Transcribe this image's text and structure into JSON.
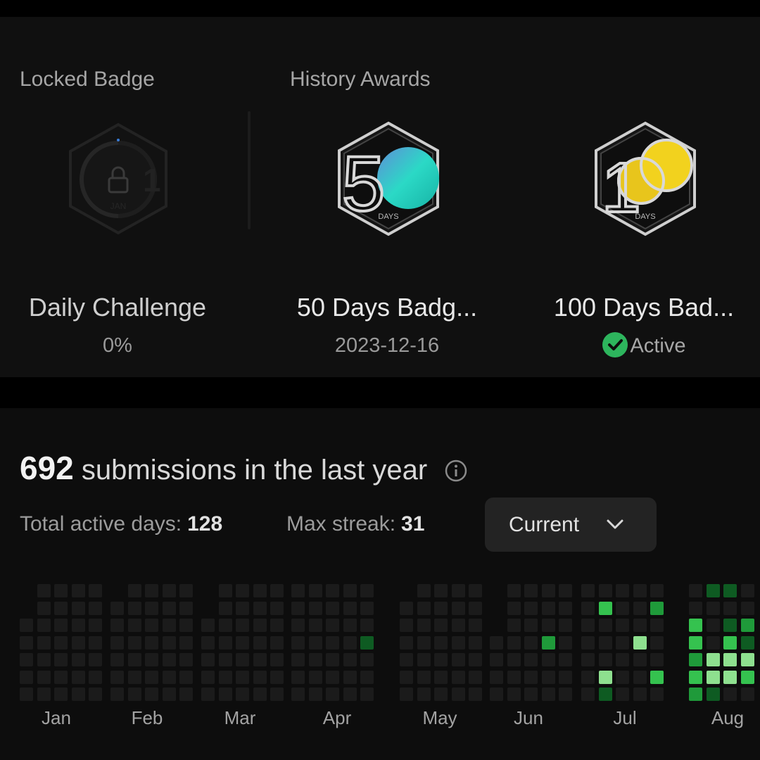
{
  "badges_section": {
    "locked_label": "Locked Badge",
    "history_label": "History Awards",
    "locked": {
      "title": "Daily Challenge",
      "progress": "0%",
      "glyph": "1",
      "sub_glyph": "JAN"
    },
    "awards": [
      {
        "title": "50 Days Badg...",
        "date": "2023-12-16",
        "numeral": "5",
        "small": "DAYS",
        "accent": "#2bd9c6"
      },
      {
        "title": "100 Days Bad...",
        "status": "Active",
        "numeral": "1",
        "small": "DAYS",
        "accent": "#f2d21e"
      }
    ]
  },
  "activity": {
    "count": "692",
    "headline_text": "submissions in the last year",
    "total_active_label": "Total active days:",
    "total_active_value": "128",
    "max_streak_label": "Max streak:",
    "max_streak_value": "31",
    "selector_value": "Current",
    "months": [
      "Jan",
      "Feb",
      "Mar",
      "Apr",
      "May",
      "Jun",
      "Jul",
      "Aug"
    ],
    "colors": {
      "empty": "#1b1b1b",
      "low": "#0e5b22",
      "mid": "#1f9a3a",
      "high": "#35c24f",
      "max": "#8ee08f",
      "check": "#2db55d"
    }
  }
}
